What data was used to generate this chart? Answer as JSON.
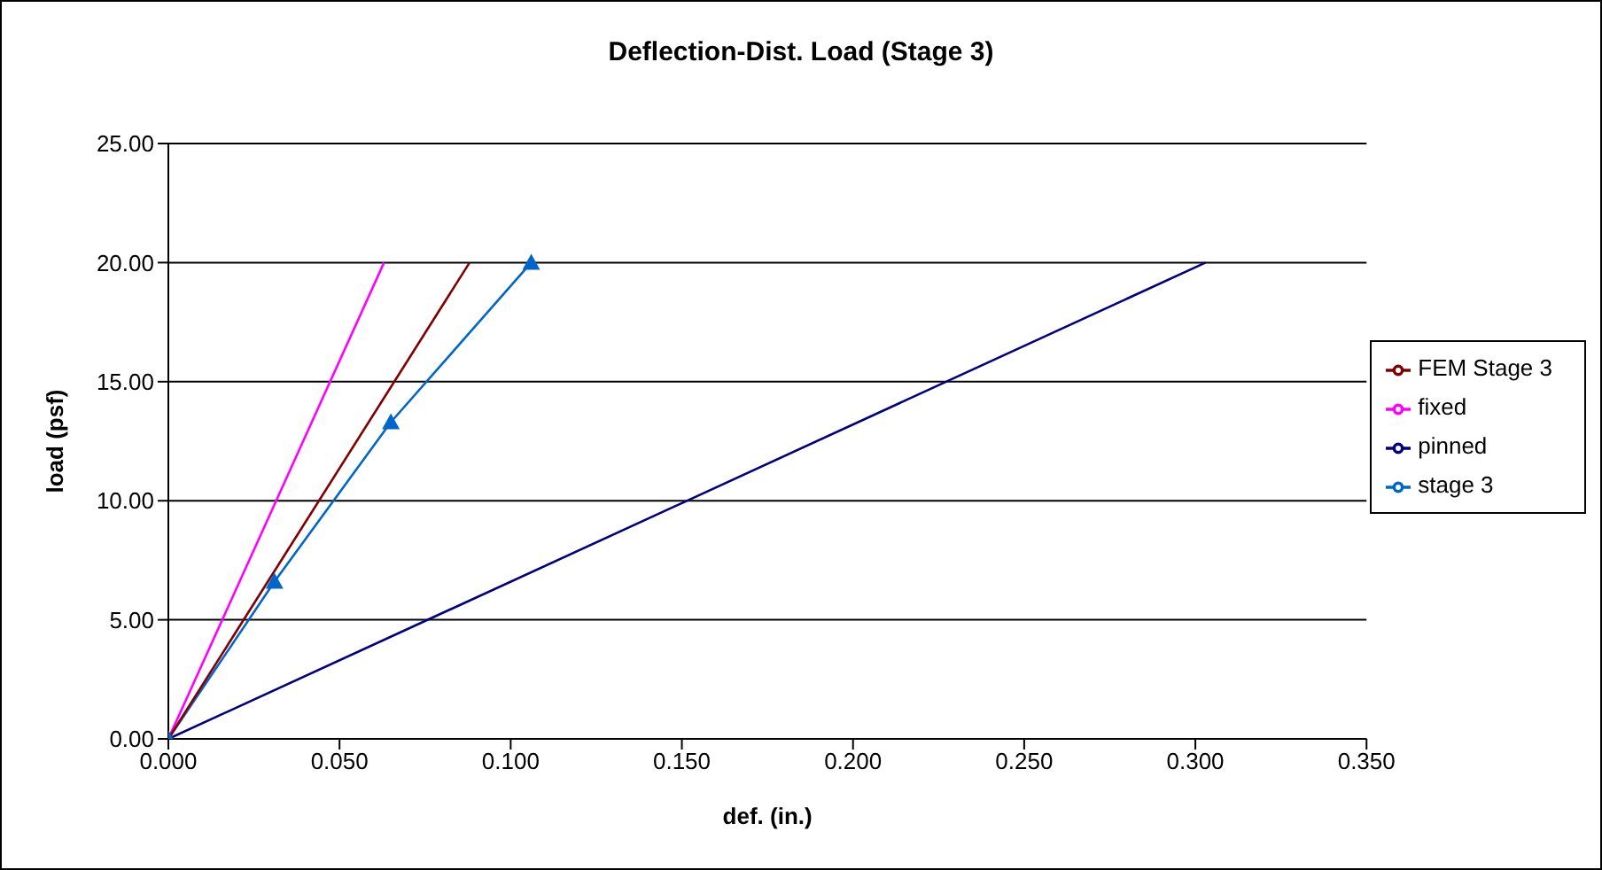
{
  "chart_data": {
    "type": "line",
    "title": "Deflection-Dist. Load (Stage 3)",
    "xlabel": "def. (in.)",
    "ylabel": "load (psf)",
    "series": [
      {
        "name": "pinned",
        "color": "#000080",
        "x": [
          0,
          0.303
        ],
        "values": [
          0,
          20
        ],
        "marker": "none"
      },
      {
        "name": "fixed",
        "color": "#ff00ff",
        "x": [
          0,
          0.063
        ],
        "values": [
          0,
          20
        ],
        "marker": "none"
      },
      {
        "name": "stage 3",
        "color": "#0066cc",
        "x": [
          0,
          0.031,
          0.065,
          0.106
        ],
        "values": [
          0,
          6.6,
          13.3,
          20
        ],
        "marker": "triangle"
      },
      {
        "name": "FEM Stage 3",
        "color": "#800000",
        "x": [
          0,
          0.088
        ],
        "values": [
          0,
          20
        ],
        "marker": "none"
      }
    ],
    "xlim": [
      0,
      0.35
    ],
    "xticks": [
      {
        "value": 0,
        "label": "0.000"
      },
      {
        "value": 0.05,
        "label": "0.050"
      },
      {
        "value": 0.1,
        "label": "0.100"
      },
      {
        "value": 0.15,
        "label": "0.150"
      },
      {
        "value": 0.2,
        "label": "0.200"
      },
      {
        "value": 0.25,
        "label": "0.250"
      },
      {
        "value": 0.3,
        "label": "0.300"
      },
      {
        "value": 0.35,
        "label": "0.350"
      }
    ],
    "ylim": [
      0,
      25
    ],
    "yticks": [
      {
        "value": 0,
        "label": "0.00"
      },
      {
        "value": 5,
        "label": "5.00"
      },
      {
        "value": 10,
        "label": "10.00"
      },
      {
        "value": 15,
        "label": "15.00"
      },
      {
        "value": 20,
        "label": "20.00"
      },
      {
        "value": 25,
        "label": "25.00"
      }
    ],
    "grid": "y",
    "legend": "right"
  }
}
